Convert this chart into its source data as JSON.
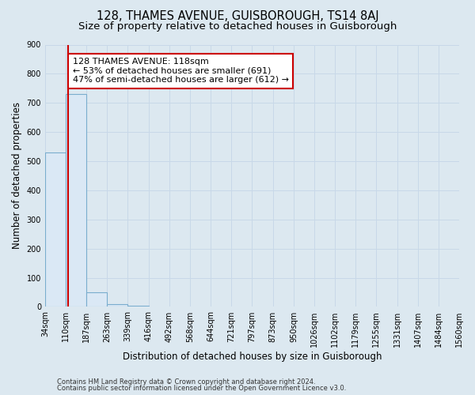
{
  "title": "128, THAMES AVENUE, GUISBOROUGH, TS14 8AJ",
  "subtitle": "Size of property relative to detached houses in Guisborough",
  "xlabel": "Distribution of detached houses by size in Guisborough",
  "ylabel": "Number of detached properties",
  "bar_edges": [
    34,
    110,
    187,
    263,
    339,
    416,
    492,
    568,
    644,
    721,
    797,
    873,
    950,
    1026,
    1102,
    1179,
    1255,
    1331,
    1407,
    1484,
    1560
  ],
  "bar_heights": [
    530,
    730,
    50,
    10,
    4,
    0,
    0,
    0,
    0,
    0,
    0,
    0,
    0,
    0,
    0,
    0,
    0,
    0,
    0,
    0
  ],
  "bar_color": "#dae8f5",
  "bar_edge_color": "#7aadce",
  "property_size": 118,
  "property_line_color": "#cc0000",
  "annotation_line1": "128 THAMES AVENUE: 118sqm",
  "annotation_line2": "← 53% of detached houses are smaller (691)",
  "annotation_line3": "47% of semi-detached houses are larger (612) →",
  "annotation_box_color": "#ffffff",
  "annotation_box_edge_color": "#cc0000",
  "ylim": [
    0,
    900
  ],
  "yticks": [
    0,
    100,
    200,
    300,
    400,
    500,
    600,
    700,
    800,
    900
  ],
  "grid_color": "#c8d8e8",
  "bg_color": "#dce8f0",
  "plot_bg_color": "#dce8f0",
  "footer_line1": "Contains HM Land Registry data © Crown copyright and database right 2024.",
  "footer_line2": "Contains public sector information licensed under the Open Government Licence v3.0.",
  "title_fontsize": 10.5,
  "subtitle_fontsize": 9.5,
  "axis_label_fontsize": 8.5,
  "tick_fontsize": 7,
  "annotation_fontsize": 8,
  "footer_fontsize": 6
}
